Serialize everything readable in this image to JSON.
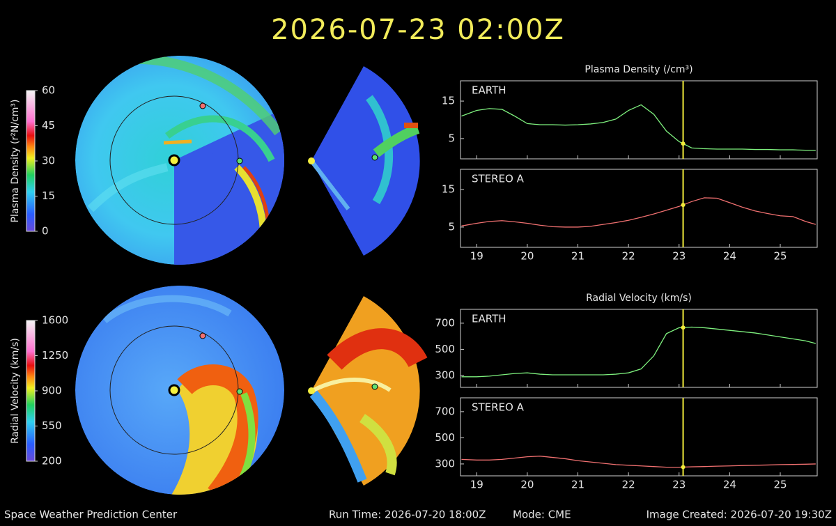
{
  "title": "2026-07-23 02:00Z",
  "colorbars": [
    {
      "label": "Plasma Density (r²N/cm³)",
      "lim": [
        0,
        60
      ],
      "ticks": [
        0,
        15,
        30,
        45,
        60
      ]
    },
    {
      "label": "Radial Velocity (km/s)",
      "lim": [
        200,
        1600
      ],
      "ticks": [
        200,
        550,
        900,
        1250,
        1600
      ]
    }
  ],
  "chart_data": [
    {
      "type": "line",
      "title": "Plasma Density (/cm³)",
      "x": [
        18.7,
        19,
        19.25,
        19.5,
        19.75,
        20,
        20.25,
        20.5,
        20.75,
        21,
        21.25,
        21.5,
        21.75,
        22,
        22.25,
        22.5,
        22.75,
        23,
        23.25,
        23.5,
        23.75,
        24,
        24.25,
        24.5,
        24.75,
        25,
        25.25,
        25.5,
        25.7
      ],
      "xlim": [
        18.68,
        25.73
      ],
      "xticks": [
        19,
        20,
        21,
        22,
        23,
        24,
        25
      ],
      "now_x": 23.08,
      "panels": [
        {
          "name": "EARTH",
          "color": "#7ef07e",
          "ylim": [
            -0.4,
            20.4
          ],
          "yticks": [
            5,
            15
          ],
          "values": [
            11,
            12.5,
            13,
            12.8,
            11,
            9,
            8.7,
            8.7,
            8.6,
            8.7,
            8.9,
            9.3,
            10.2,
            12.5,
            14,
            11.5,
            7,
            4.2,
            2.5,
            2.3,
            2.2,
            2.2,
            2.2,
            2.1,
            2.1,
            2.0,
            2.0,
            1.9,
            1.9
          ]
        },
        {
          "name": "STEREO A",
          "color": "#f07070",
          "ylim": [
            -0.4,
            20.4
          ],
          "yticks": [
            5,
            15
          ],
          "values": [
            5.3,
            6,
            6.5,
            6.7,
            6.4,
            6,
            5.5,
            5.1,
            5,
            5,
            5.2,
            5.7,
            6.2,
            6.8,
            7.6,
            8.5,
            9.5,
            10.5,
            11.8,
            12.8,
            12.7,
            11.5,
            10.3,
            9.3,
            8.6,
            8,
            7.8,
            6.5,
            5.7
          ]
        }
      ]
    },
    {
      "type": "line",
      "title": "Radial Velocity (km/s)",
      "x": [
        18.7,
        19,
        19.25,
        19.5,
        19.75,
        20,
        20.25,
        20.5,
        20.75,
        21,
        21.25,
        21.5,
        21.75,
        22,
        22.25,
        22.5,
        22.75,
        23,
        23.25,
        23.5,
        23.75,
        24,
        24.25,
        24.5,
        24.75,
        25,
        25.25,
        25.5,
        25.7
      ],
      "xlim": [
        18.68,
        25.73
      ],
      "xticks": [
        19,
        20,
        21,
        22,
        23,
        24,
        25
      ],
      "now_x": 23.08,
      "panels": [
        {
          "name": "EARTH",
          "color": "#7ef07e",
          "ylim": [
            209,
            806
          ],
          "yticks": [
            300,
            500,
            700
          ],
          "values": [
            290,
            290,
            295,
            305,
            315,
            320,
            310,
            305,
            305,
            305,
            305,
            305,
            310,
            320,
            350,
            450,
            620,
            665,
            670,
            665,
            655,
            645,
            635,
            625,
            610,
            595,
            580,
            565,
            545
          ]
        },
        {
          "name": "STEREO A",
          "color": "#f07070",
          "ylim": [
            209,
            806
          ],
          "yticks": [
            300,
            500,
            700
          ],
          "values": [
            335,
            330,
            330,
            335,
            345,
            355,
            360,
            350,
            340,
            325,
            315,
            305,
            295,
            290,
            285,
            280,
            275,
            275,
            278,
            280,
            283,
            285,
            288,
            290,
            292,
            295,
            296,
            298,
            300
          ]
        }
      ]
    }
  ],
  "footer": {
    "left": "Space Weather Prediction Center",
    "run_time": "Run Time: 2026-07-20 18:00Z",
    "mode": "Mode: CME",
    "right": "Image Created: 2026-07-20 19:30Z"
  }
}
